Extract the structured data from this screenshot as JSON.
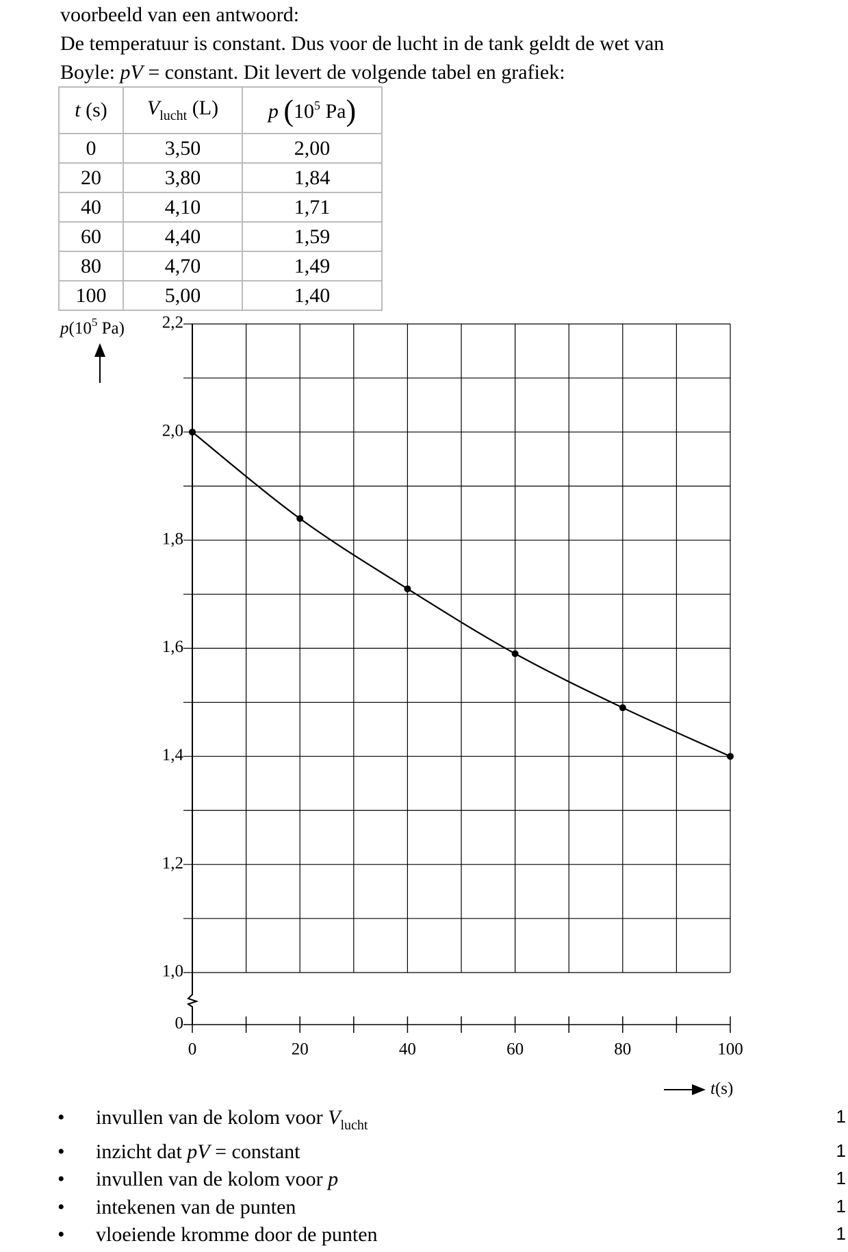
{
  "header": {
    "intro": "voorbeeld van een antwoord:",
    "line2": "De temperatuur is constant. Dus voor de lucht in de tank geldt de wet van",
    "line3": [
      "Boyle: ",
      "pV",
      " = constant. Dit levert de volgende tabel en grafiek:"
    ]
  },
  "table": {
    "header": [
      [
        "t",
        " (s)"
      ],
      [
        "V",
        "lucht",
        " (L)"
      ],
      [
        "p",
        "(",
        "10",
        "5",
        " Pa",
        ")"
      ]
    ],
    "rows": [
      [
        "0",
        "3,50",
        "2,00"
      ],
      [
        "20",
        "3,80",
        "1,84"
      ],
      [
        "40",
        "4,10",
        "1,71"
      ],
      [
        "60",
        "4,40",
        "1,59"
      ],
      [
        "80",
        "4,70",
        "1,49"
      ],
      [
        "100",
        "5,00",
        "1,40"
      ]
    ]
  },
  "chart_data": {
    "type": "line",
    "ylabel": {
      "symbol": "p",
      "pre": "(10",
      "exp": "5",
      "post": " Pa)"
    },
    "xlabel": {
      "symbol": "t",
      "unit": "(s)"
    },
    "x": [
      0,
      20,
      40,
      60,
      80,
      100
    ],
    "series": [
      {
        "name": "p",
        "color": "#000000",
        "values": [
          2.0,
          1.84,
          1.71,
          1.59,
          1.49,
          1.4
        ]
      }
    ],
    "xlim": [
      0,
      100
    ],
    "xticks": [
      0,
      20,
      40,
      60,
      80,
      100
    ],
    "xminor": [
      10,
      30,
      50,
      70,
      90
    ],
    "ylim": [
      1.0,
      2.2
    ],
    "yticks": [
      0,
      {
        "value": 1.0,
        "label": "1,0"
      },
      {
        "value": 1.2,
        "label": "1,2"
      },
      {
        "value": 1.4,
        "label": "1,4"
      },
      {
        "value": 1.6,
        "label": "1,6"
      },
      {
        "value": 1.8,
        "label": "1,8"
      },
      {
        "value": 2.0,
        "label": "2,0"
      },
      {
        "value": 2.2,
        "label": "2,2"
      }
    ],
    "yminor": [
      1.1,
      1.3,
      1.5,
      1.7,
      1.9,
      2.1
    ],
    "axis_break": true,
    "grid": true,
    "smooth": true
  },
  "criteria": [
    {
      "text": [
        "invullen van de kolom voor ",
        "V",
        "lucht"
      ],
      "score": "1"
    },
    {
      "text": [
        "inzicht dat ",
        "pV",
        " = constant"
      ],
      "score": "1"
    },
    {
      "text": [
        "invullen van de kolom voor ",
        "p"
      ],
      "score": "1"
    },
    {
      "text": [
        "intekenen van de punten"
      ],
      "score": "1"
    },
    {
      "text": [
        "vloeiende kromme door de punten"
      ],
      "score": "1"
    }
  ]
}
